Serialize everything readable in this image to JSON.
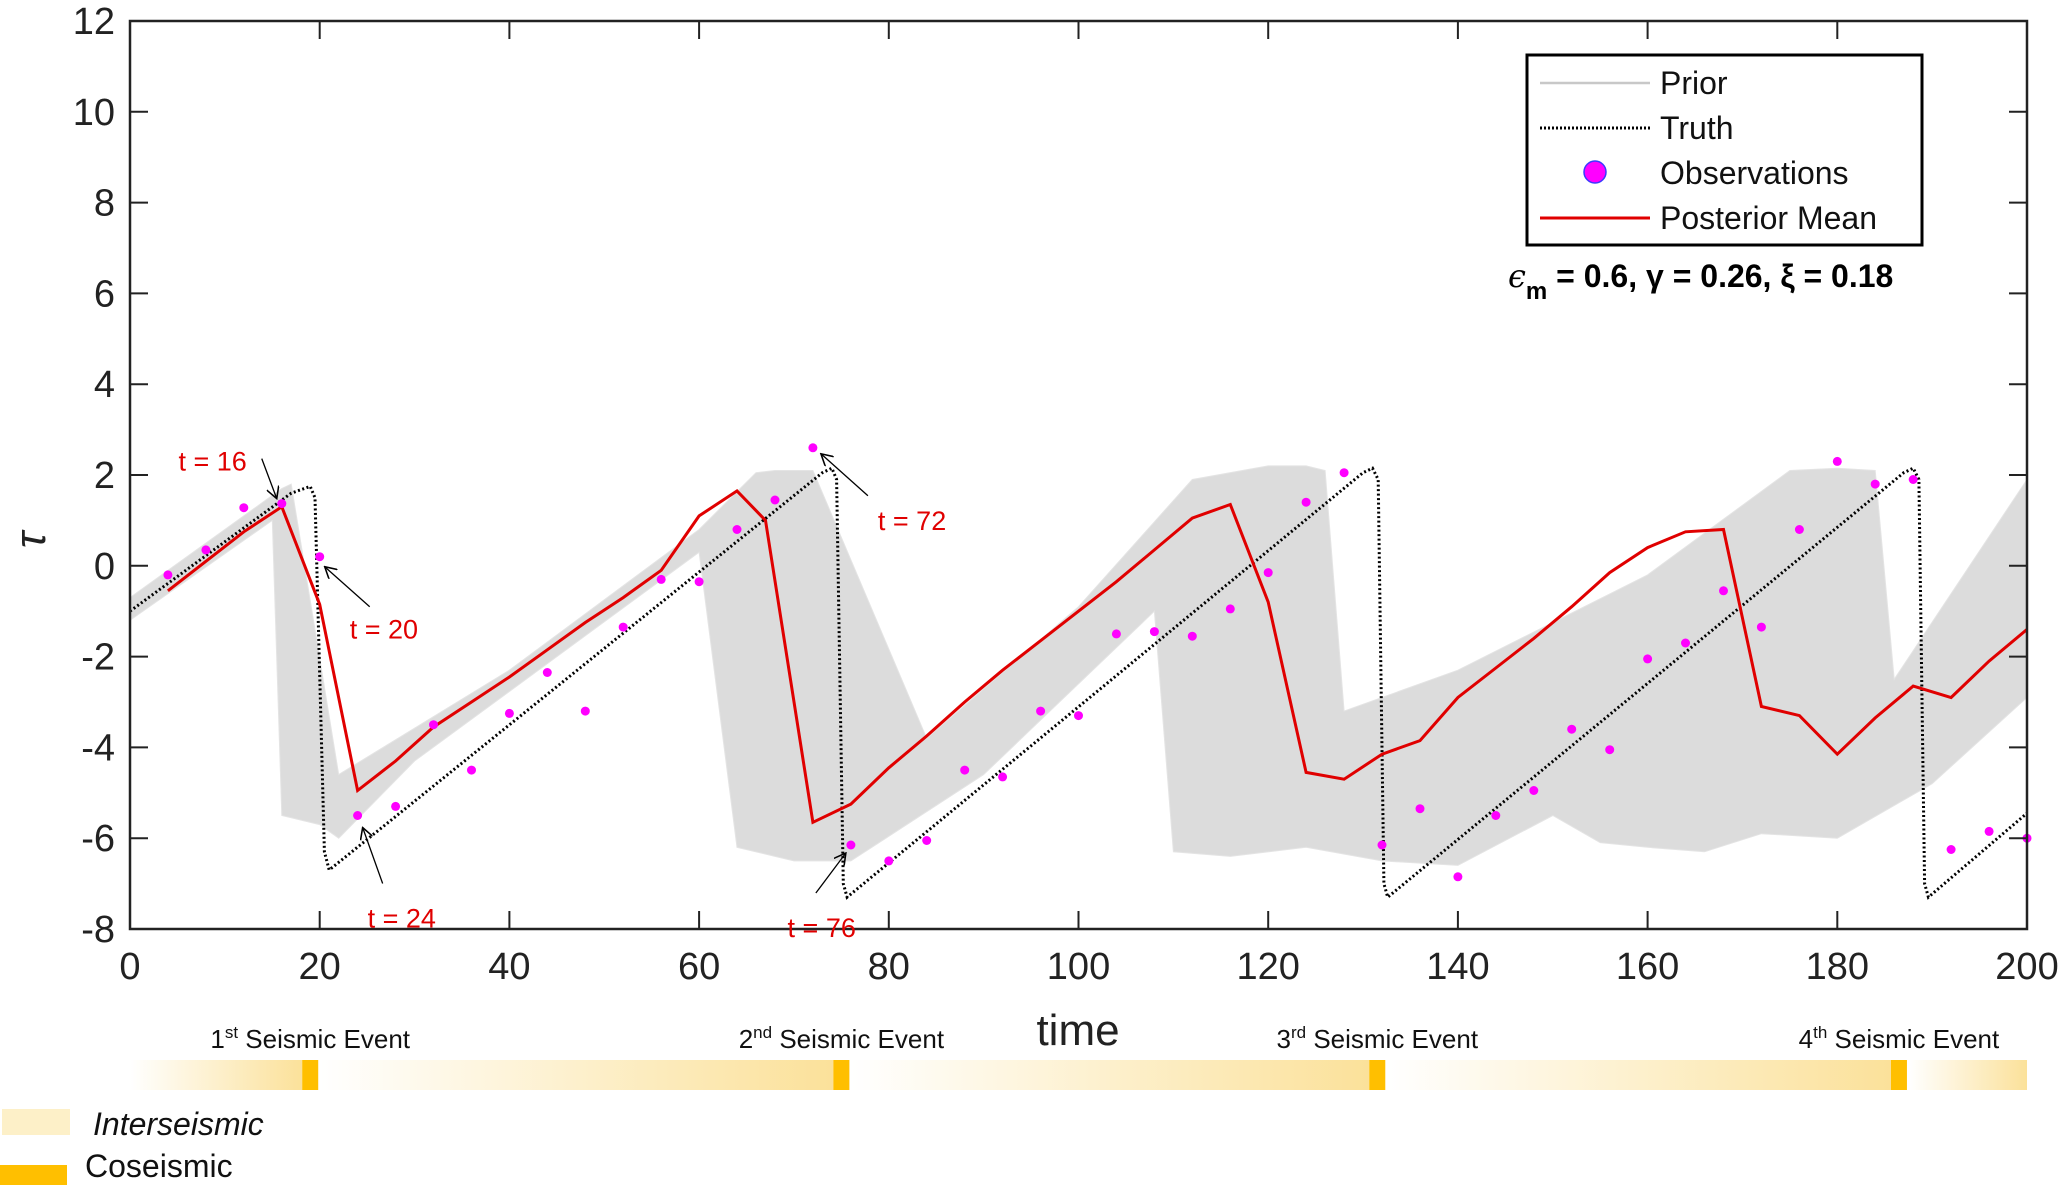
{
  "chart_data": {
    "type": "line",
    "title": "",
    "xlabel": "time",
    "ylabel": "τ",
    "xlim": [
      0,
      200
    ],
    "ylim": [
      -8,
      12
    ],
    "xticks": [
      0,
      20,
      40,
      60,
      80,
      100,
      120,
      140,
      160,
      180,
      200
    ],
    "yticks": [
      -8,
      -6,
      -4,
      -2,
      0,
      2,
      4,
      6,
      8,
      10,
      12
    ],
    "grid": false,
    "legend": {
      "placement": "top-right",
      "entries": [
        {
          "label": "Prior",
          "style": "line",
          "color": "#d0d0d0"
        },
        {
          "label": "Truth",
          "style": "dotted",
          "color": "#000000"
        },
        {
          "label": "Observations",
          "style": "marker",
          "color": "#ff00ff"
        },
        {
          "label": "Posterior Mean",
          "style": "line",
          "color": "#e00000"
        }
      ]
    },
    "parameters_text": {
      "eps": "ϵ",
      "eps_sub": "m",
      "rest": " = 0.6, γ = 0.26, ξ = 0.18"
    },
    "series": [
      {
        "name": "Truth",
        "color": "#000000",
        "x": [
          0,
          17,
          19,
          19.5,
          20.5,
          21,
          73,
          74,
          74.5,
          75.2,
          75.6,
          130,
          131,
          131.6,
          132.2,
          132.6,
          187,
          188,
          188.6,
          189.2,
          189.6,
          200
        ],
        "y": [
          -1.0,
          1.6,
          1.75,
          1.5,
          -6.3,
          -6.7,
          2.05,
          2.15,
          1.9,
          -7.0,
          -7.3,
          2.05,
          2.15,
          1.9,
          -7.0,
          -7.3,
          2.05,
          2.15,
          1.9,
          -7.0,
          -7.3,
          -5.45
        ]
      },
      {
        "name": "Posterior Mean",
        "color": "#e00000",
        "x": [
          4,
          8,
          12,
          16,
          20,
          24,
          28,
          32,
          36,
          40,
          44,
          48,
          52,
          56,
          60,
          64,
          67,
          72,
          76,
          80,
          84,
          88,
          92,
          96,
          100,
          104,
          108,
          112,
          116,
          120,
          124,
          128,
          132,
          136,
          140,
          144,
          148,
          152,
          156,
          160,
          164,
          168,
          172,
          176,
          180,
          184,
          188,
          192,
          196,
          200
        ],
        "y": [
          -0.55,
          0.1,
          0.75,
          1.3,
          -0.85,
          -4.95,
          -4.3,
          -3.55,
          -3.0,
          -2.45,
          -1.85,
          -1.25,
          -0.7,
          -0.1,
          1.1,
          1.65,
          1.0,
          -5.65,
          -5.25,
          -4.45,
          -3.75,
          -3.0,
          -2.3,
          -1.65,
          -1.0,
          -0.35,
          0.35,
          1.05,
          1.35,
          -0.8,
          -4.55,
          -4.7,
          -4.15,
          -3.85,
          -2.9,
          -2.25,
          -1.6,
          -0.9,
          -0.15,
          0.4,
          0.75,
          0.8,
          -3.1,
          -3.3,
          -4.15,
          -3.35,
          -2.65,
          -2.9,
          -2.1,
          -1.4
        ]
      },
      {
        "name": "Observations",
        "color": "#ff00ff",
        "x": [
          4,
          8,
          12,
          16,
          20,
          24,
          28,
          32,
          36,
          40,
          44,
          48,
          52,
          56,
          60,
          64,
          68,
          72,
          76,
          80,
          84,
          88,
          92,
          96,
          100,
          104,
          108,
          112,
          116,
          120,
          124,
          128,
          132,
          136,
          140,
          144,
          148,
          152,
          156,
          160,
          164,
          168,
          172,
          176,
          180,
          184,
          188,
          192,
          196,
          200
        ],
        "y": [
          -0.2,
          0.35,
          1.28,
          1.37,
          0.2,
          -5.5,
          -5.3,
          -3.5,
          -4.5,
          -3.25,
          -2.35,
          -3.2,
          -1.35,
          -0.3,
          -0.35,
          0.8,
          1.45,
          2.6,
          -6.15,
          -6.5,
          -6.05,
          -4.5,
          -4.65,
          -3.2,
          -3.3,
          -1.5,
          -1.45,
          -1.55,
          -0.95,
          -0.15,
          1.4,
          2.05,
          -6.15,
          -5.35,
          -6.85,
          -5.5,
          -4.95,
          -3.6,
          -4.05,
          -2.05,
          -1.7,
          -0.55,
          -1.35,
          0.8,
          2.3,
          1.8,
          1.9,
          -6.25,
          -5.85,
          -6.0
        ]
      },
      {
        "name": "Prior",
        "color": "#dcdcdc",
        "description": "ensemble band",
        "upper": {
          "x": [
            0,
            16,
            17,
            22,
            40,
            60,
            66,
            68,
            72,
            84,
            100,
            112,
            120,
            124,
            126,
            128,
            140,
            160,
            175,
            180,
            184,
            186,
            200
          ],
          "y": [
            -0.7,
            1.7,
            1.8,
            -4.6,
            -2.3,
            0.8,
            2.05,
            2.1,
            2.1,
            -3.8,
            -0.9,
            1.9,
            2.2,
            2.2,
            2.1,
            -3.2,
            -2.3,
            -0.2,
            2.1,
            2.15,
            2.1,
            -2.5,
            1.9
          ]
        },
        "lower": {
          "x": [
            0,
            15,
            16,
            20,
            22,
            30,
            60,
            64,
            68,
            70,
            76,
            90,
            108,
            110,
            116,
            124,
            132,
            140,
            150,
            155,
            160,
            166,
            172,
            180,
            190,
            200
          ],
          "y": [
            -1.2,
            1.0,
            -5.5,
            -5.7,
            -6.0,
            -4.3,
            0.3,
            -6.2,
            -6.4,
            -6.5,
            -6.5,
            -4.6,
            -1.0,
            -6.3,
            -6.4,
            -6.2,
            -6.5,
            -6.6,
            -5.5,
            -6.1,
            -6.2,
            -6.3,
            -5.9,
            -6.0,
            -4.8,
            -2.9
          ]
        }
      }
    ],
    "annotations": [
      {
        "text": "t = 16",
        "at_x": 16,
        "at_y": 1.37
      },
      {
        "text": "t = 20",
        "at_x": 20,
        "at_y": 0.2
      },
      {
        "text": "t = 24",
        "at_x": 24,
        "at_y": -5.5
      },
      {
        "text": "t = 72",
        "at_x": 72,
        "at_y": 2.6
      },
      {
        "text": "t = 76",
        "at_x": 76,
        "at_y": -6.15
      }
    ],
    "event_bar": {
      "events": [
        {
          "ordinal": "1",
          "suffix": "st",
          "label": " Seismic Event",
          "coseismic_time": 19
        },
        {
          "ordinal": "2",
          "suffix": "nd",
          "label": " Seismic Event",
          "coseismic_time": 75
        },
        {
          "ordinal": "3",
          "suffix": "rd",
          "label": " Seismic Event",
          "coseismic_time": 131.5
        },
        {
          "ordinal": "4",
          "suffix": "th",
          "label": " Seismic Event",
          "coseismic_time": 186.5
        }
      ],
      "legend": [
        {
          "label": "Interseismic",
          "color": "#fdf0c8",
          "italic": true
        },
        {
          "label": "Coseismic",
          "color": "#ffbf00",
          "italic": false
        }
      ]
    }
  }
}
